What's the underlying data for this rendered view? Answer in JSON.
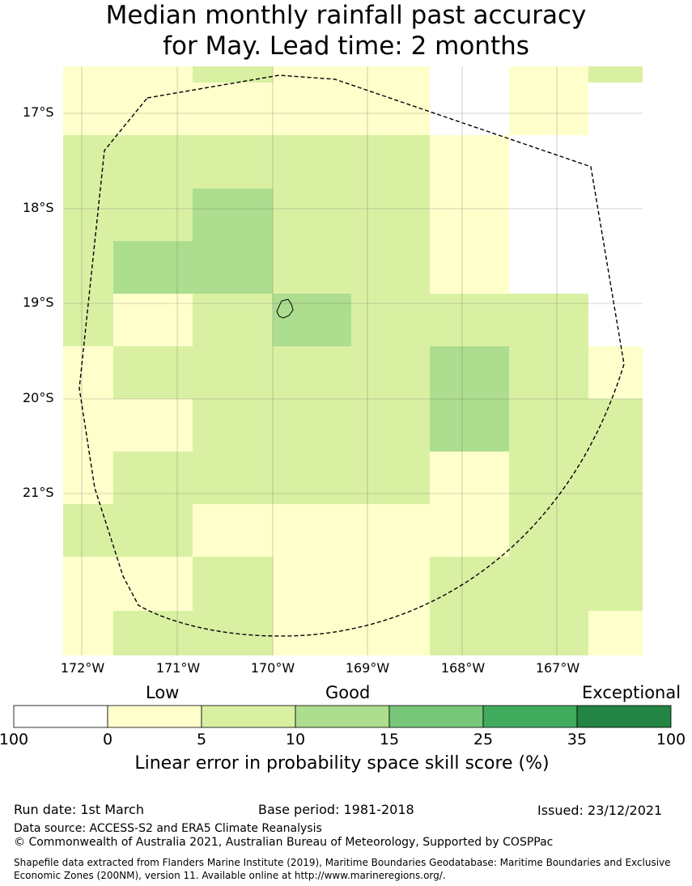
{
  "title": {
    "line1": "Median monthly rainfall past accuracy",
    "line2": "for May. Lead time: 2 months"
  },
  "map": {
    "lat_labels": [
      "17°S",
      "18°S",
      "19°S",
      "20°S",
      "21°S"
    ],
    "lon_labels": [
      "172°W",
      "171°W",
      "170°W",
      "169°W",
      "168°W",
      "167°W"
    ],
    "grid_score_categories": [
      [
        "1",
        "1",
        "2",
        "1",
        "1",
        "0",
        "1",
        "2"
      ],
      [
        "1",
        "1",
        "1",
        "1",
        "1",
        "0",
        "1",
        "0"
      ],
      [
        "2",
        "2",
        "2",
        "2",
        "2",
        "1",
        "0",
        "0"
      ],
      [
        "2",
        "2",
        "3",
        "2",
        "2",
        "1",
        "0",
        "0"
      ],
      [
        "2",
        "3",
        "3",
        "2",
        "2",
        "1",
        "0",
        "0"
      ],
      [
        "2",
        "1",
        "2",
        "3",
        "2",
        "2",
        "2",
        "0"
      ],
      [
        "1",
        "2",
        "2",
        "2",
        "2",
        "3",
        "2",
        "1"
      ],
      [
        "1",
        "1",
        "2",
        "2",
        "2",
        "3",
        "2",
        "2"
      ],
      [
        "1",
        "2",
        "2",
        "2",
        "2",
        "1",
        "2",
        "2"
      ],
      [
        "2",
        "2",
        "1",
        "1",
        "1",
        "1",
        "2",
        "2"
      ],
      [
        "1",
        "1",
        "2",
        "1",
        "1",
        "2",
        "2",
        "2"
      ],
      [
        "1",
        "2",
        "2",
        "1",
        "1",
        "2",
        "2",
        "1"
      ]
    ],
    "colors": {
      "cat0": "#ffffff",
      "cat1": "#ffffcc",
      "cat2": "#d9f0a3",
      "cat3": "#addd8e",
      "cat4": "#78c679",
      "cat5": "#41ab5d",
      "cat6": "#238443"
    }
  },
  "legend": {
    "categories": [
      "Low",
      "Good",
      "Exceptional"
    ],
    "ticks": [
      "100",
      "0",
      "5",
      "10",
      "15",
      "25",
      "35",
      "100"
    ],
    "colors": [
      "#ffffff",
      "#ffffcc",
      "#d9f0a3",
      "#addd8e",
      "#78c679",
      "#41ab5d",
      "#238443"
    ],
    "title": "Linear error in probability space skill score (%)"
  },
  "footer": {
    "run_date": "Run date: 1st March",
    "base_period": "Base period: 1981-2018",
    "issued": "Issued: 23/12/2021",
    "data_source": "Data source: ACCESS-S2 and ERA5 Climate Reanalysis",
    "copyright": "© Commonwealth of Australia 2021, Australian Bureau of Meteorology, Supported by COSPPac",
    "shapefile_line1": "Shapefile data extracted from Flanders Marine Institute (2019), Maritime Boundaries Geodatabase: Maritime Boundaries and Exclusive",
    "shapefile_line2": "Economic Zones (200NM), version 11. Available online at http://www.marineregions.org/."
  }
}
